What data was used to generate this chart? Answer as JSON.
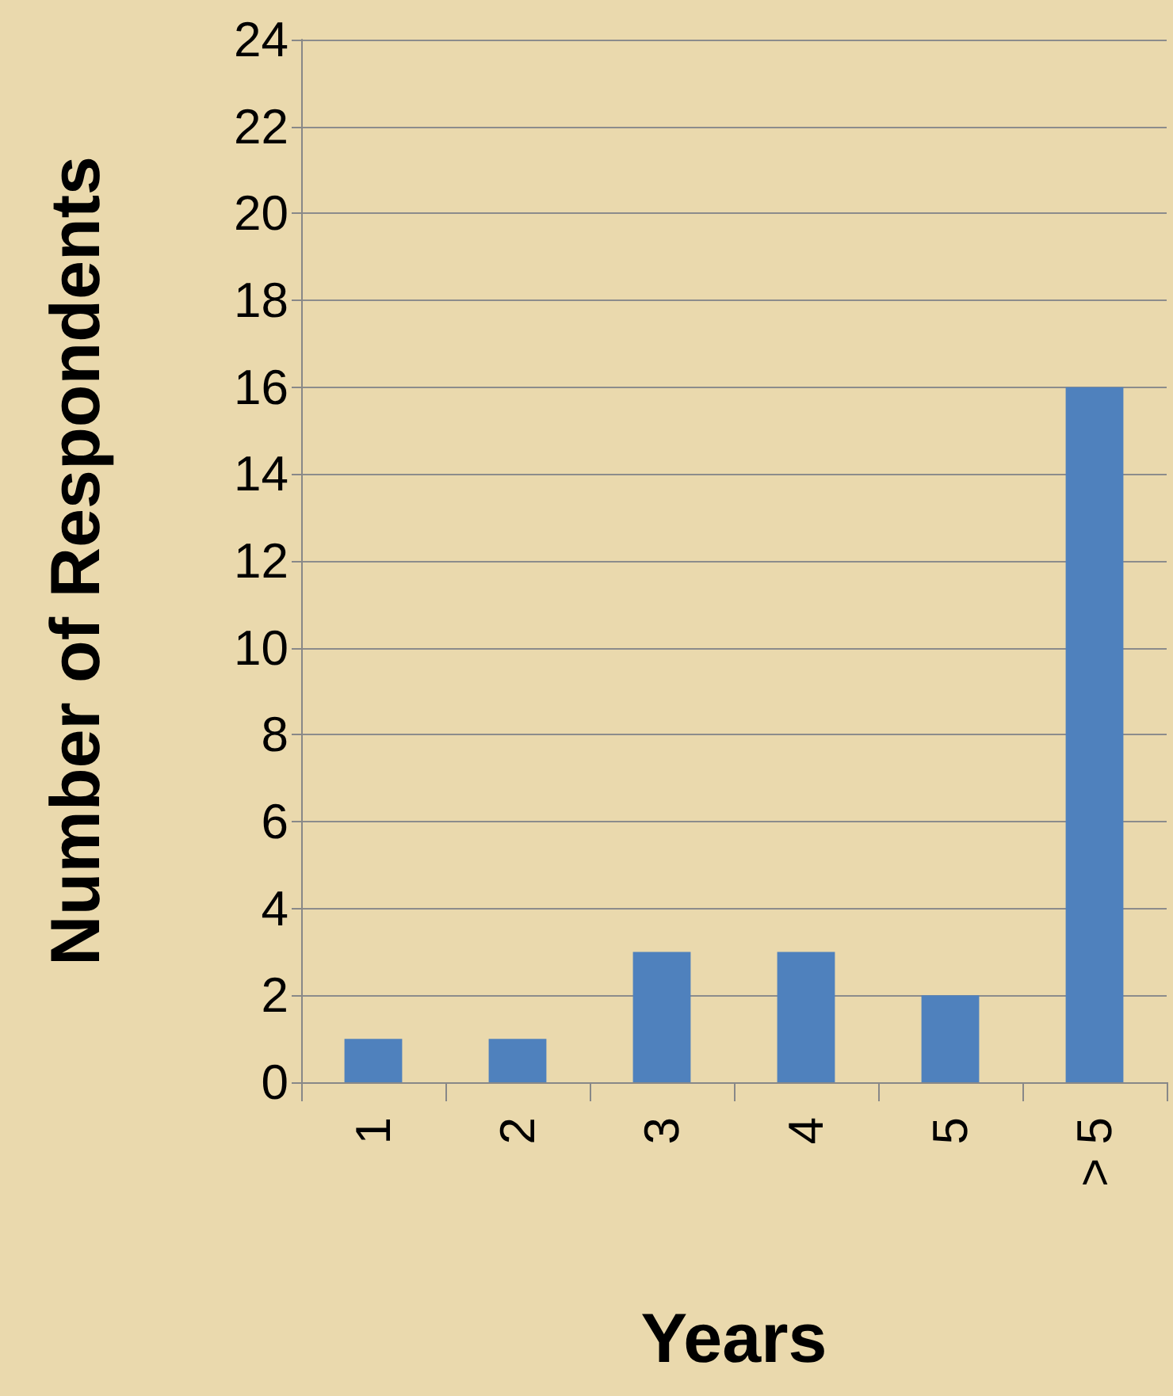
{
  "chart_data": {
    "type": "bar",
    "xlabel": "Years",
    "ylabel": "Number of Respondents",
    "categories": [
      "1",
      "2",
      "3",
      "4",
      "5",
      "> 5"
    ],
    "values": [
      1,
      1,
      3,
      3,
      2,
      16
    ],
    "color": "#4f81bd",
    "ylim": [
      0,
      24
    ],
    "yticks": [
      0,
      2,
      4,
      6,
      8,
      10,
      12,
      14,
      16,
      18,
      20,
      22,
      24
    ],
    "grid": "y"
  }
}
